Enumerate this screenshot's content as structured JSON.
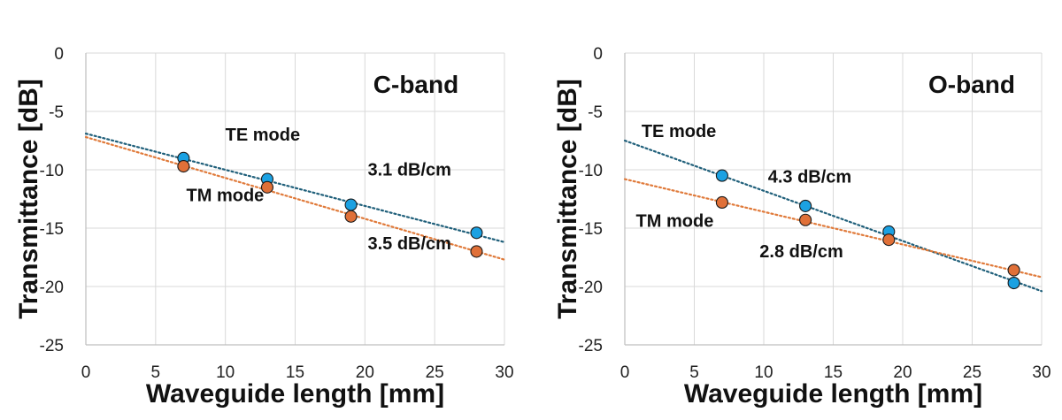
{
  "chart_data": [
    {
      "type": "scatter",
      "panel_label": "C-band",
      "xlabel": "Waveguide length [mm]",
      "ylabel": "Transmittance [dB]",
      "xlim": [
        0,
        30
      ],
      "ylim": [
        -25,
        0
      ],
      "xticks": [
        0,
        5,
        10,
        15,
        20,
        25,
        30
      ],
      "yticks": [
        0,
        -5,
        -10,
        -15,
        -20,
        -25
      ],
      "grid": true,
      "series": [
        {
          "name": "TE mode",
          "color": "#1BA1E2",
          "trend_color": "#1F5F7A",
          "x": [
            7,
            13,
            19,
            28
          ],
          "y": [
            -9.0,
            -10.8,
            -13.0,
            -15.4
          ],
          "fit": {
            "slope": -0.31,
            "intercept": -6.9
          }
        },
        {
          "name": "TM mode",
          "color": "#E07038",
          "trend_color": "#E07A3A",
          "x": [
            7,
            13,
            19,
            28
          ],
          "y": [
            -9.7,
            -11.5,
            -14.0,
            -17.0
          ],
          "fit": {
            "slope": -0.35,
            "intercept": -7.2
          }
        }
      ],
      "annotations": [
        {
          "id": "te",
          "text": "TE mode",
          "x": 10,
          "y": -7.5
        },
        {
          "id": "te_slope",
          "text": "3.1 dB/cm",
          "x": 20.2,
          "y": -10.5
        },
        {
          "id": "tm",
          "text": "TM mode",
          "x": 7.2,
          "y": -12.7
        },
        {
          "id": "tm_slope",
          "text": "3.5 dB/cm",
          "x": 20.2,
          "y": -16.8
        }
      ]
    },
    {
      "type": "scatter",
      "panel_label": "O-band",
      "xlabel": "Waveguide length [mm]",
      "ylabel": "Transmittance [dB]",
      "xlim": [
        0,
        30
      ],
      "ylim": [
        -25,
        0
      ],
      "xticks": [
        0,
        5,
        10,
        15,
        20,
        25,
        30
      ],
      "yticks": [
        0,
        -5,
        -10,
        -15,
        -20,
        -25
      ],
      "grid": true,
      "series": [
        {
          "name": "TE mode",
          "color": "#1BA1E2",
          "trend_color": "#1F5F7A",
          "x": [
            7,
            13,
            19,
            28
          ],
          "y": [
            -10.5,
            -13.1,
            -15.3,
            -19.7
          ],
          "fit": {
            "slope": -0.43,
            "intercept": -7.5
          }
        },
        {
          "name": "TM mode",
          "color": "#E07038",
          "trend_color": "#E07A3A",
          "x": [
            7,
            13,
            19,
            28
          ],
          "y": [
            -12.8,
            -14.3,
            -16.0,
            -18.6
          ],
          "fit": {
            "slope": -0.28,
            "intercept": -10.8
          }
        }
      ],
      "annotations": [
        {
          "id": "te",
          "text": "TE mode",
          "x": 1.2,
          "y": -7.2
        },
        {
          "id": "te_slope",
          "text": "4.3 dB/cm",
          "x": 10.3,
          "y": -11.1
        },
        {
          "id": "tm",
          "text": "TM mode",
          "x": 0.8,
          "y": -14.9
        },
        {
          "id": "tm_slope",
          "text": "2.8 dB/cm",
          "x": 9.7,
          "y": -17.5
        }
      ]
    }
  ]
}
